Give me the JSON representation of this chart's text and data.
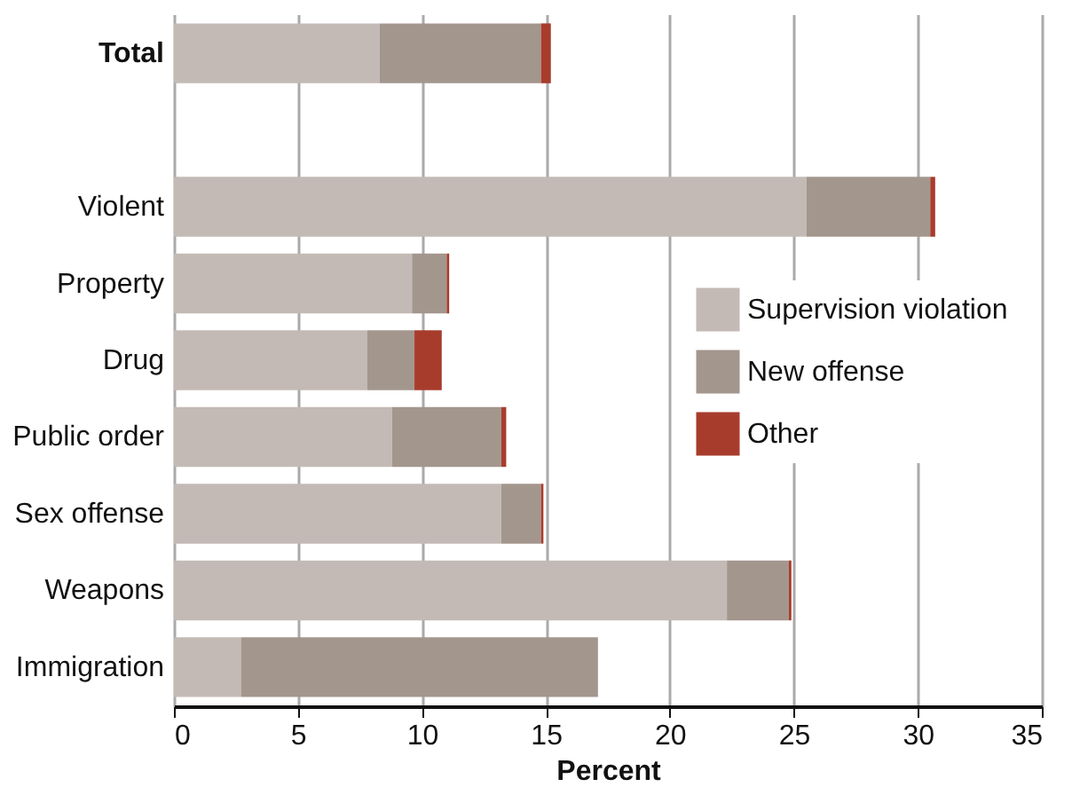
{
  "chart_data": {
    "type": "bar",
    "orientation": "horizontal",
    "stacked": true,
    "xlabel": "Percent",
    "categories": [
      "Total",
      null,
      "Violent",
      "Property",
      "Drug",
      "Public order",
      "Sex offense",
      "Weapons",
      "Immigration"
    ],
    "series": [
      {
        "name": "Supervision violation",
        "color": "#c3bab5",
        "values": [
          8.3,
          null,
          25.5,
          9.6,
          7.8,
          8.8,
          13.2,
          22.3,
          2.7
        ]
      },
      {
        "name": "New offense",
        "color": "#a3968d",
        "values": [
          6.5,
          null,
          5.0,
          1.4,
          1.9,
          4.4,
          1.6,
          2.5,
          14.4
        ]
      },
      {
        "name": "Other",
        "color": "#a83c2c",
        "values": [
          0.4,
          null,
          0.2,
          0.1,
          1.1,
          0.2,
          0.1,
          0.1,
          null
        ]
      }
    ],
    "xlim": [
      0,
      35
    ],
    "xticks": [
      0,
      5,
      10,
      15,
      20,
      25,
      30,
      35
    ],
    "grid": "x",
    "legend": "right"
  }
}
